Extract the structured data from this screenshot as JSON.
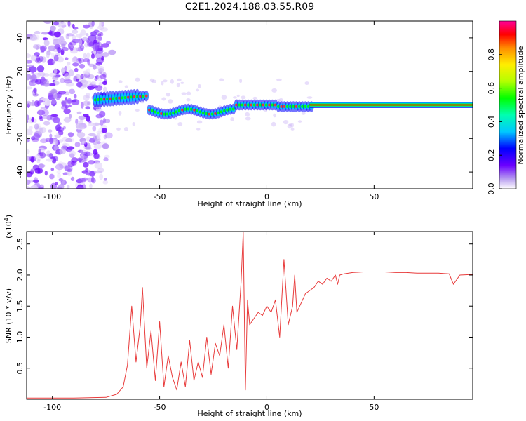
{
  "title": "C2E1.2024.188.03.55.R09",
  "chart_data": [
    {
      "type": "heatmap",
      "xlabel": "Height of straight line (km)",
      "ylabel": "Frequency (Hz)",
      "xlim": [
        -112,
        96
      ],
      "ylim": [
        -50,
        50
      ],
      "x_ticks": [
        "-100",
        "-50",
        "0",
        "50"
      ],
      "y_ticks": [
        "-40",
        "-20",
        "0",
        "20",
        "40"
      ],
      "colorbar": {
        "label": "Normalized spectral amplitude",
        "range": [
          0,
          1
        ],
        "ticks": [
          "0.0",
          "0.2",
          "0.4",
          "0.6",
          "0.8"
        ]
      },
      "features": [
        {
          "description_x_range": [
            -112,
            -80
          ],
          "content": "scattered low-amplitude noise across all frequencies"
        },
        {
          "x_range": [
            -80,
            20
          ],
          "frequency_center": 0,
          "content": "broadened mid-amplitude signal band"
        },
        {
          "x_range": [
            20,
            96
          ],
          "frequency_center": 0,
          "amplitude": 0.9,
          "content": "narrow high-amplitude carrier line"
        }
      ]
    },
    {
      "type": "line",
      "xlabel": "Height of straight line (km)",
      "ylabel": "SNR (10 * v/v)",
      "y_scale_label": "(x10",
      "y_scale_exp": "4",
      "xlim": [
        -112,
        96
      ],
      "ylim": [
        0,
        2.7
      ],
      "x_ticks": [
        "-100",
        "-50",
        "0",
        "50"
      ],
      "y_ticks": [
        "0.5",
        "1.0",
        "1.5",
        "2.0",
        "2.5"
      ],
      "color": "#e83b3b",
      "x": [
        -112,
        -90,
        -75,
        -70,
        -67,
        -65,
        -63,
        -61,
        -59,
        -58,
        -56,
        -54,
        -52,
        -50,
        -48,
        -46,
        -44,
        -42,
        -40,
        -38,
        -36,
        -34,
        -32,
        -30,
        -28,
        -26,
        -24,
        -22,
        -20,
        -18,
        -16,
        -14,
        -12,
        -11,
        -10,
        -9,
        -8,
        -6,
        -4,
        -2,
        0,
        2,
        4,
        6,
        8,
        10,
        12,
        13,
        14,
        16,
        18,
        20,
        22,
        24,
        26,
        28,
        30,
        32,
        33,
        34,
        36,
        40,
        45,
        50,
        55,
        60,
        65,
        70,
        75,
        80,
        85,
        87,
        90,
        96
      ],
      "y": [
        0.02,
        0.02,
        0.03,
        0.08,
        0.2,
        0.55,
        1.5,
        0.6,
        1.2,
        1.8,
        0.5,
        1.1,
        0.3,
        1.25,
        0.2,
        0.7,
        0.35,
        0.15,
        0.6,
        0.2,
        0.95,
        0.3,
        0.6,
        0.35,
        1.0,
        0.4,
        0.9,
        0.7,
        1.2,
        0.5,
        1.5,
        0.8,
        1.9,
        2.7,
        0.15,
        1.6,
        1.2,
        1.3,
        1.4,
        1.35,
        1.5,
        1.4,
        1.6,
        1.0,
        2.25,
        1.2,
        1.5,
        2.0,
        1.4,
        1.55,
        1.7,
        1.75,
        1.8,
        1.9,
        1.85,
        1.95,
        1.9,
        2.0,
        1.85,
        2.0,
        2.02,
        2.04,
        2.05,
        2.05,
        2.05,
        2.04,
        2.04,
        2.03,
        2.03,
        2.03,
        2.02,
        1.85,
        2.0,
        2.01
      ]
    }
  ]
}
